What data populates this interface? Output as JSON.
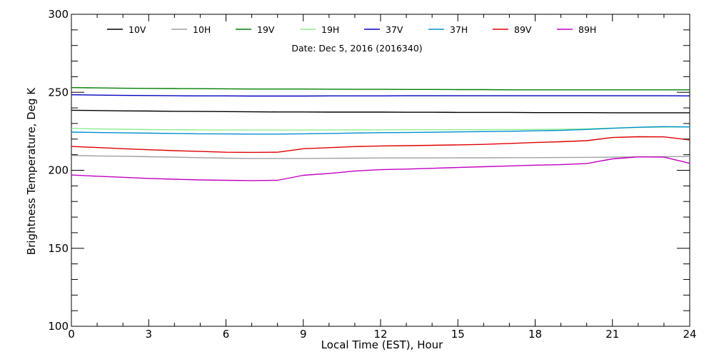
{
  "chart_data": {
    "type": "line",
    "title": "Date: Dec  5, 2016 (2016340)",
    "xlabel": "Local Time (EST), Hour",
    "ylabel": "Brightness Temperature, Deg K",
    "xlim": [
      0,
      24
    ],
    "ylim": [
      100,
      300
    ],
    "x_ticks": [
      0,
      3,
      6,
      9,
      12,
      15,
      18,
      21,
      24
    ],
    "y_ticks": [
      100,
      150,
      200,
      250,
      300
    ],
    "grid": false,
    "legend_position": "top",
    "x": [
      0,
      1,
      2,
      3,
      4,
      5,
      6,
      7,
      8,
      9,
      10,
      11,
      12,
      13,
      14,
      15,
      16,
      17,
      18,
      19,
      20,
      21,
      22,
      23,
      24
    ],
    "series": [
      {
        "name": "10V",
        "color": "#000000",
        "values": [
          238.5,
          238.3,
          238.1,
          238.0,
          237.8,
          237.7,
          237.6,
          237.5,
          237.4,
          237.4,
          237.3,
          237.3,
          237.3,
          237.2,
          237.2,
          237.1,
          237.1,
          237.1,
          237.0,
          237.0,
          237.0,
          236.9,
          236.9,
          236.9,
          236.9
        ]
      },
      {
        "name": "10H",
        "color": "#a0a0a0",
        "values": [
          209.5,
          209.2,
          209.0,
          208.7,
          208.4,
          208.1,
          207.8,
          207.6,
          207.6,
          207.6,
          207.7,
          207.8,
          207.9,
          207.9,
          207.9,
          208.0,
          208.0,
          208.1,
          208.1,
          208.2,
          208.3,
          208.4,
          208.6,
          208.7,
          208.9
        ]
      },
      {
        "name": "19V",
        "color": "#008000",
        "values": [
          253.0,
          252.8,
          252.6,
          252.5,
          252.4,
          252.3,
          252.2,
          252.1,
          252.1,
          252.1,
          252.0,
          251.9,
          251.9,
          251.8,
          251.8,
          251.7,
          251.7,
          251.6,
          251.6,
          251.6,
          251.6,
          251.6,
          251.6,
          251.6,
          251.6
        ]
      },
      {
        "name": "19H",
        "color": "#90ee90",
        "values": [
          226.8,
          226.5,
          226.3,
          226.1,
          226.0,
          225.9,
          225.8,
          225.8,
          225.8,
          225.8,
          225.8,
          225.9,
          225.9,
          226.0,
          226.0,
          226.0,
          226.1,
          226.1,
          226.2,
          226.3,
          226.6,
          227.1,
          227.4,
          227.7,
          227.8
        ]
      },
      {
        "name": "37V",
        "color": "#0000c0",
        "values": [
          248.4,
          248.2,
          248.0,
          247.9,
          247.8,
          247.7,
          247.7,
          247.6,
          247.6,
          247.6,
          247.7,
          247.7,
          247.7,
          247.8,
          247.8,
          247.8,
          247.8,
          247.8,
          247.8,
          247.8,
          247.8,
          247.8,
          247.8,
          247.8,
          247.7
        ]
      },
      {
        "name": "37H",
        "color": "#0090d0",
        "values": [
          224.5,
          224.2,
          224.0,
          223.8,
          223.6,
          223.4,
          223.3,
          223.2,
          223.2,
          223.4,
          223.6,
          223.9,
          224.1,
          224.2,
          224.4,
          224.6,
          224.8,
          225.0,
          225.3,
          225.6,
          226.2,
          226.9,
          227.6,
          228.0,
          227.8
        ]
      },
      {
        "name": "89V",
        "color": "#e00000",
        "values": [
          215.3,
          214.6,
          213.8,
          213.2,
          212.6,
          212.1,
          211.6,
          211.5,
          211.6,
          213.8,
          214.5,
          215.2,
          215.6,
          215.8,
          216.0,
          216.3,
          216.6,
          217.2,
          217.8,
          218.3,
          219.0,
          221.0,
          221.5,
          221.4,
          219.5
        ]
      },
      {
        "name": "89H",
        "color": "#c000c0",
        "values": [
          197.0,
          196.2,
          195.5,
          194.8,
          194.3,
          193.8,
          193.6,
          193.4,
          193.6,
          196.8,
          198.0,
          199.5,
          200.4,
          200.8,
          201.3,
          201.8,
          202.3,
          202.8,
          203.3,
          203.6,
          204.3,
          207.3,
          208.6,
          208.4,
          204.5
        ]
      }
    ]
  }
}
